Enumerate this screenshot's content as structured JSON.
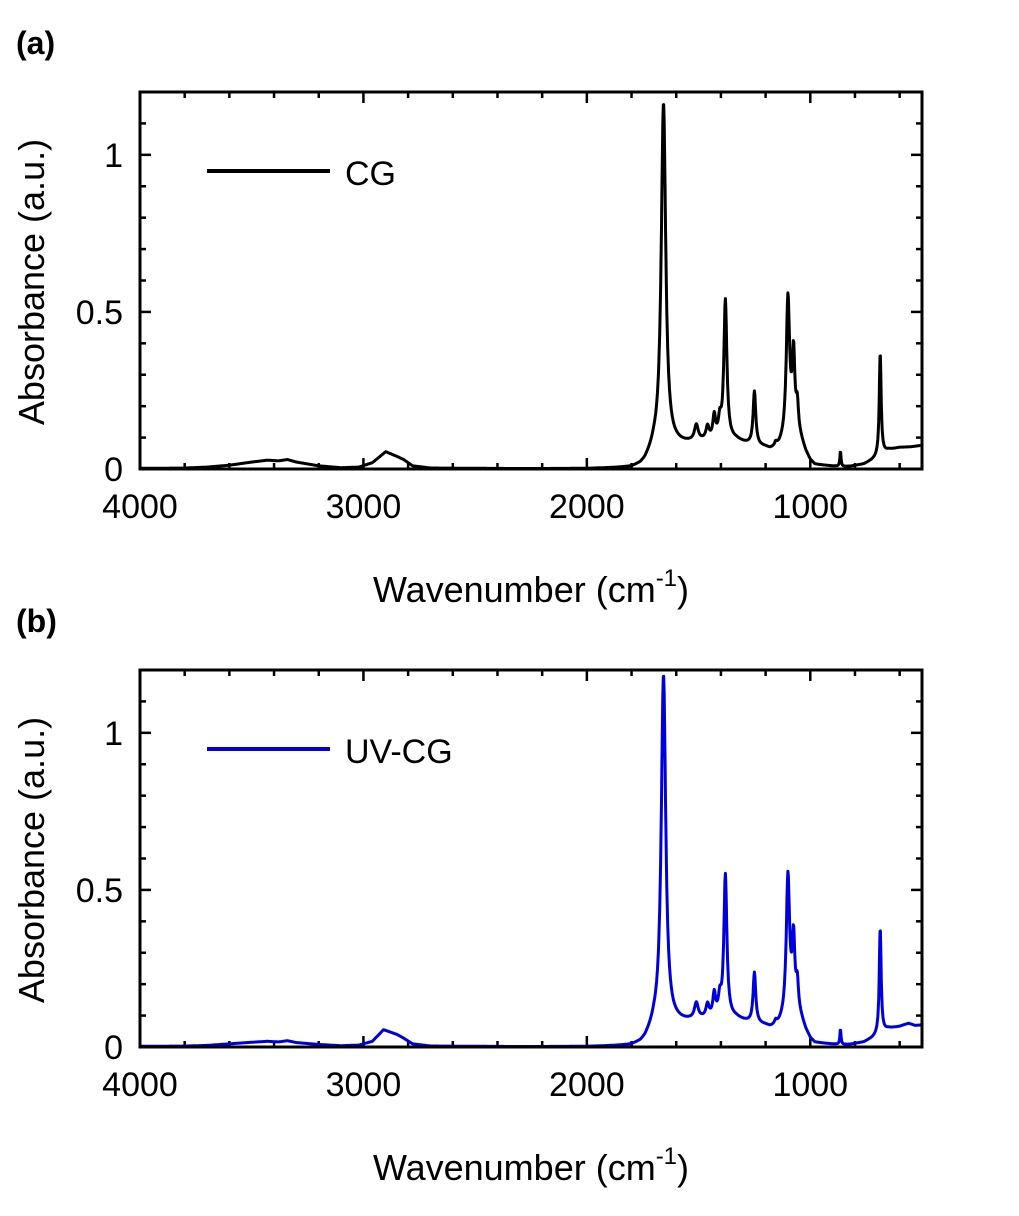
{
  "figure": {
    "panels": [
      "(a)",
      "(b)"
    ]
  },
  "chart_data": [
    {
      "type": "line",
      "panel_label": "(a)",
      "xlabel": "Wavenumber (cm",
      "xlabel_sup": "-1",
      "xlabel_close": ")",
      "ylabel": "Absorbance (a.u.)",
      "xlim": [
        4000,
        500
      ],
      "ylim": [
        0,
        1.2
      ],
      "xticks": [
        4000,
        3000,
        2000,
        1000
      ],
      "xtick_labels": [
        "4000",
        "3000",
        "2000",
        "1000"
      ],
      "yticks": [
        0,
        0.5,
        1
      ],
      "ytick_labels": [
        "0",
        "0.5",
        "1"
      ],
      "legend": "top-left",
      "series": [
        {
          "name": "CG",
          "color": "#000000",
          "baseline": [
            [
              4000,
              0.002
            ],
            [
              3800,
              0.003
            ],
            [
              3700,
              0.006
            ],
            [
              3600,
              0.012
            ],
            [
              3500,
              0.022
            ],
            [
              3430,
              0.028
            ],
            [
              3380,
              0.026
            ],
            [
              3340,
              0.03
            ],
            [
              3300,
              0.022
            ],
            [
              3200,
              0.01
            ],
            [
              3100,
              0.004
            ],
            [
              3020,
              0.006
            ],
            [
              2960,
              0.02
            ],
            [
              2900,
              0.055
            ],
            [
              2850,
              0.04
            ],
            [
              2820,
              0.03
            ],
            [
              2780,
              0.01
            ],
            [
              2700,
              0.003
            ],
            [
              2500,
              0.002
            ],
            [
              2300,
              0.001
            ],
            [
              2000,
              0.001
            ],
            [
              1800,
              0.003
            ],
            [
              1760,
              0.01
            ],
            [
              1740,
              0.02
            ],
            [
              1700,
              0.06
            ],
            [
              1600,
              0.075
            ],
            [
              1560,
              0.078
            ],
            [
              1520,
              0.082
            ],
            [
              1480,
              0.086
            ],
            [
              1440,
              0.09
            ],
            [
              1400,
              0.095
            ],
            [
              1330,
              0.09
            ],
            [
              1300,
              0.082
            ],
            [
              1280,
              0.078
            ],
            [
              1200,
              0.066
            ],
            [
              1180,
              0.06
            ],
            [
              1160,
              0.062
            ],
            [
              1140,
              0.068
            ],
            [
              1120,
              0.08
            ],
            [
              1100,
              0.1
            ],
            [
              1080,
              0.11
            ],
            [
              1060,
              0.11
            ],
            [
              1040,
              0.085
            ],
            [
              1020,
              0.05
            ],
            [
              1000,
              0.025
            ],
            [
              980,
              0.012
            ],
            [
              900,
              0.008
            ],
            [
              860,
              0.006
            ],
            [
              820,
              0.008
            ],
            [
              760,
              0.015
            ],
            [
              720,
              0.028
            ],
            [
              690,
              0.04
            ],
            [
              650,
              0.06
            ],
            [
              600,
              0.068
            ],
            [
              550,
              0.07
            ],
            [
              500,
              0.075
            ]
          ],
          "peaks": [
            [
              1657,
              1.1,
              12
            ],
            [
              1510,
              0.05,
              10
            ],
            [
              1460,
              0.04,
              8
            ],
            [
              1430,
              0.07,
              7
            ],
            [
              1405,
              0.05,
              7
            ],
            [
              1380,
              0.44,
              8
            ],
            [
              1250,
              0.17,
              7
            ],
            [
              1155,
              0.012,
              6
            ],
            [
              1100,
              0.44,
              9
            ],
            [
              1075,
              0.24,
              7
            ],
            [
              1058,
              0.08,
              6
            ],
            [
              865,
              0.05,
              3
            ],
            [
              687,
              0.33,
              5
            ]
          ]
        }
      ]
    },
    {
      "type": "line",
      "panel_label": "(b)",
      "xlabel": "Wavenumber (cm",
      "xlabel_sup": "-1",
      "xlabel_close": ")",
      "ylabel": "Absorbance (a.u.)",
      "xlim": [
        4000,
        500
      ],
      "ylim": [
        0,
        1.2
      ],
      "xticks": [
        4000,
        3000,
        2000,
        1000
      ],
      "xtick_labels": [
        "4000",
        "3000",
        "2000",
        "1000"
      ],
      "yticks": [
        0,
        0.5,
        1
      ],
      "ytick_labels": [
        "0",
        "0.5",
        "1"
      ],
      "legend": "top-left",
      "series": [
        {
          "name": "UV-CG",
          "color": "#0000dd",
          "baseline": [
            [
              4000,
              0.002
            ],
            [
              3800,
              0.003
            ],
            [
              3700,
              0.005
            ],
            [
              3600,
              0.01
            ],
            [
              3500,
              0.015
            ],
            [
              3430,
              0.018
            ],
            [
              3380,
              0.016
            ],
            [
              3340,
              0.02
            ],
            [
              3300,
              0.014
            ],
            [
              3200,
              0.008
            ],
            [
              3100,
              0.004
            ],
            [
              3020,
              0.006
            ],
            [
              2960,
              0.018
            ],
            [
              2910,
              0.055
            ],
            [
              2850,
              0.04
            ],
            [
              2820,
              0.028
            ],
            [
              2780,
              0.01
            ],
            [
              2700,
              0.003
            ],
            [
              2500,
              0.002
            ],
            [
              2300,
              0.001
            ],
            [
              2000,
              0.001
            ],
            [
              1800,
              0.003
            ],
            [
              1760,
              0.01
            ],
            [
              1740,
              0.02
            ],
            [
              1700,
              0.06
            ],
            [
              1600,
              0.075
            ],
            [
              1560,
              0.078
            ],
            [
              1520,
              0.082
            ],
            [
              1480,
              0.086
            ],
            [
              1440,
              0.09
            ],
            [
              1400,
              0.095
            ],
            [
              1330,
              0.09
            ],
            [
              1300,
              0.082
            ],
            [
              1280,
              0.078
            ],
            [
              1200,
              0.066
            ],
            [
              1180,
              0.06
            ],
            [
              1160,
              0.062
            ],
            [
              1140,
              0.068
            ],
            [
              1120,
              0.08
            ],
            [
              1100,
              0.1
            ],
            [
              1080,
              0.11
            ],
            [
              1060,
              0.11
            ],
            [
              1040,
              0.085
            ],
            [
              1020,
              0.05
            ],
            [
              1000,
              0.025
            ],
            [
              980,
              0.012
            ],
            [
              900,
              0.008
            ],
            [
              860,
              0.006
            ],
            [
              820,
              0.008
            ],
            [
              760,
              0.015
            ],
            [
              720,
              0.028
            ],
            [
              690,
              0.04
            ],
            [
              650,
              0.058
            ],
            [
              600,
              0.065
            ],
            [
              560,
              0.075
            ],
            [
              530,
              0.068
            ],
            [
              500,
              0.07
            ]
          ],
          "peaks": [
            [
              1657,
              1.12,
              12
            ],
            [
              1510,
              0.05,
              10
            ],
            [
              1460,
              0.04,
              8
            ],
            [
              1430,
              0.07,
              7
            ],
            [
              1405,
              0.05,
              7
            ],
            [
              1380,
              0.45,
              8
            ],
            [
              1250,
              0.16,
              7
            ],
            [
              1155,
              0.012,
              6
            ],
            [
              1100,
              0.44,
              9
            ],
            [
              1075,
              0.22,
              7
            ],
            [
              1058,
              0.08,
              6
            ],
            [
              865,
              0.05,
              3
            ],
            [
              687,
              0.34,
              5
            ]
          ]
        }
      ]
    }
  ]
}
